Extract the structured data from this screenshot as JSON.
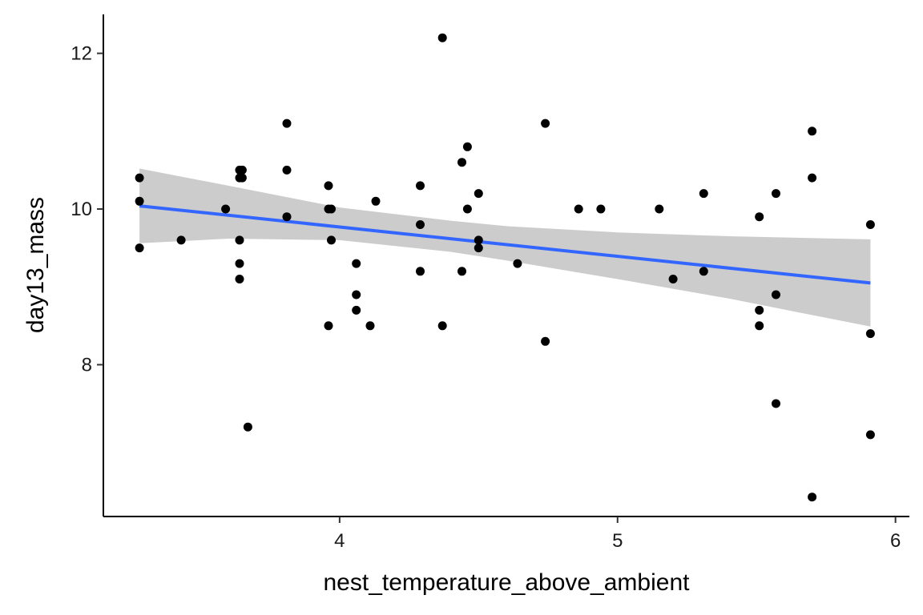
{
  "chart_data": {
    "type": "scatter",
    "title": "",
    "xlabel": "nest_temperature_above_ambient",
    "ylabel": "day13_mass",
    "xlim": [
      3.15,
      6.05
    ],
    "ylim": [
      6.05,
      12.5
    ],
    "x_ticks": [
      4,
      5,
      6
    ],
    "y_ticks": [
      8,
      10,
      12
    ],
    "x_tick_labels": [
      "4",
      "5",
      "6"
    ],
    "y_tick_labels": [
      "8",
      "10",
      "12"
    ],
    "grid": false,
    "legend": "none",
    "point_color": "#000000",
    "points": [
      {
        "x": 3.28,
        "y": 10.4
      },
      {
        "x": 3.28,
        "y": 10.1
      },
      {
        "x": 3.28,
        "y": 9.5
      },
      {
        "x": 3.43,
        "y": 9.6
      },
      {
        "x": 3.59,
        "y": 10.0
      },
      {
        "x": 3.64,
        "y": 10.5
      },
      {
        "x": 3.65,
        "y": 10.5
      },
      {
        "x": 3.64,
        "y": 10.4
      },
      {
        "x": 3.65,
        "y": 10.4
      },
      {
        "x": 3.64,
        "y": 9.6
      },
      {
        "x": 3.64,
        "y": 9.3
      },
      {
        "x": 3.64,
        "y": 9.1
      },
      {
        "x": 3.67,
        "y": 7.2
      },
      {
        "x": 3.81,
        "y": 11.1
      },
      {
        "x": 3.81,
        "y": 10.5
      },
      {
        "x": 3.81,
        "y": 9.9
      },
      {
        "x": 3.96,
        "y": 10.3
      },
      {
        "x": 3.96,
        "y": 10.0
      },
      {
        "x": 3.97,
        "y": 10.0
      },
      {
        "x": 3.97,
        "y": 9.6
      },
      {
        "x": 3.96,
        "y": 8.5
      },
      {
        "x": 4.06,
        "y": 9.3
      },
      {
        "x": 4.06,
        "y": 8.9
      },
      {
        "x": 4.06,
        "y": 8.7
      },
      {
        "x": 4.11,
        "y": 8.5
      },
      {
        "x": 4.13,
        "y": 10.1
      },
      {
        "x": 4.29,
        "y": 10.3
      },
      {
        "x": 4.29,
        "y": 9.8
      },
      {
        "x": 4.29,
        "y": 9.2
      },
      {
        "x": 4.37,
        "y": 12.2
      },
      {
        "x": 4.37,
        "y": 8.5
      },
      {
        "x": 4.44,
        "y": 10.6
      },
      {
        "x": 4.46,
        "y": 10.8
      },
      {
        "x": 4.46,
        "y": 10.0
      },
      {
        "x": 4.44,
        "y": 9.2
      },
      {
        "x": 4.5,
        "y": 10.2
      },
      {
        "x": 4.5,
        "y": 9.6
      },
      {
        "x": 4.5,
        "y": 9.5
      },
      {
        "x": 4.64,
        "y": 9.3
      },
      {
        "x": 4.74,
        "y": 11.1
      },
      {
        "x": 4.74,
        "y": 8.3
      },
      {
        "x": 4.86,
        "y": 10.0
      },
      {
        "x": 4.94,
        "y": 10.0
      },
      {
        "x": 5.15,
        "y": 10.0
      },
      {
        "x": 5.2,
        "y": 9.1
      },
      {
        "x": 5.31,
        "y": 10.2
      },
      {
        "x": 5.31,
        "y": 9.2
      },
      {
        "x": 5.51,
        "y": 9.9
      },
      {
        "x": 5.51,
        "y": 8.7
      },
      {
        "x": 5.51,
        "y": 8.5
      },
      {
        "x": 5.57,
        "y": 10.2
      },
      {
        "x": 5.57,
        "y": 8.9
      },
      {
        "x": 5.57,
        "y": 7.5
      },
      {
        "x": 5.7,
        "y": 11.0
      },
      {
        "x": 5.7,
        "y": 10.4
      },
      {
        "x": 5.7,
        "y": 6.3
      },
      {
        "x": 5.91,
        "y": 9.8
      },
      {
        "x": 5.91,
        "y": 8.4
      },
      {
        "x": 5.91,
        "y": 7.1
      }
    ],
    "trend_line": {
      "color": "#3366FF",
      "x": [
        3.28,
        5.91
      ],
      "y": [
        10.04,
        9.05
      ]
    },
    "confidence_band": {
      "color": "#cccccc",
      "x": [
        3.28,
        3.6,
        4.0,
        4.4,
        4.6,
        5.0,
        5.4,
        5.91
      ],
      "upper": [
        10.52,
        10.3,
        10.02,
        9.85,
        9.78,
        9.7,
        9.65,
        9.61
      ],
      "lower": [
        9.56,
        9.62,
        9.6,
        9.45,
        9.34,
        9.1,
        8.85,
        8.49
      ]
    }
  }
}
